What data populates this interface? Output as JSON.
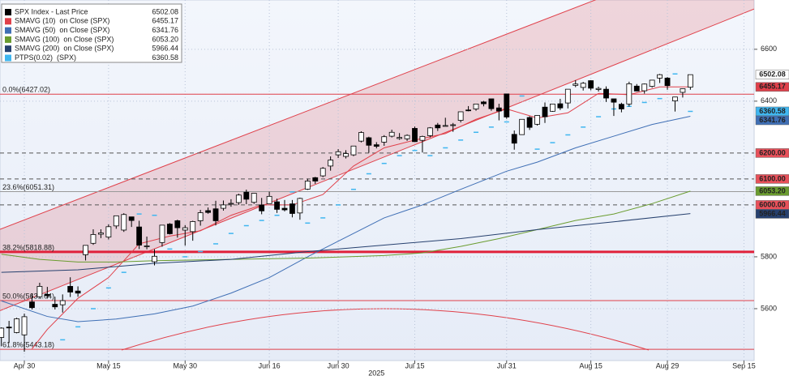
{
  "chart_data": {
    "type": "candlestick",
    "ohlc": {
      "name": "SPX Index - Last Price",
      "color": "#000000",
      "open": [
        5489,
        5529,
        5508,
        5499,
        5626,
        5646,
        5655,
        5617,
        5615,
        5686,
        5668,
        5808,
        5852,
        5887,
        5876,
        5919,
        5903,
        5954,
        5915,
        5841,
        5781,
        5855,
        5926,
        5939,
        5903,
        5897,
        5939,
        5978,
        5985,
        5987,
        6004,
        6009,
        6049,
        6010,
        6000,
        6005,
        6012,
        5987,
        6004,
        5969,
        6061,
        6105,
        6112,
        6150,
        6193,
        6187,
        6193,
        6246,
        6259,
        6232,
        6242,
        6265,
        6256,
        6255,
        6295,
        6249,
        6267,
        6308,
        6304,
        6307,
        6326,
        6366,
        6370,
        6397,
        6409,
        6374,
        6428,
        6272,
        6271,
        6337,
        6311,
        6377,
        6361,
        6390,
        6393,
        6461,
        6453,
        6479,
        6445,
        6446,
        6409,
        6388,
        6389,
        6458,
        6440,
        6457,
        6489,
        6489,
        6401,
        6434,
        6454
      ],
      "high": [
        5528,
        5553,
        5565,
        5581,
        5659,
        5700,
        5684,
        5646,
        5655,
        5721,
        5686,
        5845,
        5906,
        5906,
        5925,
        5959,
        5968,
        5954,
        5939,
        5878,
        5829,
        5922,
        5930,
        5943,
        5922,
        5939,
        5981,
        5990,
        6016,
        6017,
        6022,
        6043,
        6059,
        6046,
        6027,
        6051,
        6024,
        6019,
        6019,
        6028,
        6101,
        6108,
        6146,
        6187,
        6215,
        6211,
        6227,
        6284,
        6263,
        6242,
        6269,
        6290,
        6277,
        6272,
        6302,
        6267,
        6300,
        6316,
        6336,
        6316,
        6360,
        6381,
        6390,
        6401,
        6409,
        6390,
        6428,
        6287,
        6330,
        6342,
        6346,
        6395,
        6389,
        6409,
        6446,
        6481,
        6474,
        6481,
        6456,
        6457,
        6409,
        6394,
        6475,
        6466,
        6468,
        6482,
        6505,
        6493,
        6416,
        6449,
        6502.08
      ],
      "low": [
        5455,
        5468,
        5505,
        5434,
        5597,
        5643,
        5639,
        5597,
        5585,
        5645,
        5646,
        5786,
        5846,
        5872,
        5867,
        5908,
        5896,
        5915,
        5830,
        5829,
        5767,
        5839,
        5886,
        5874,
        5843,
        5862,
        5920,
        5966,
        5921,
        5978,
        5993,
        6000,
        6003,
        6004,
        5964,
        6005,
        5969,
        5975,
        5952,
        5943,
        6058,
        6081,
        6107,
        6132,
        6181,
        6179,
        6188,
        6241,
        6201,
        6218,
        6228,
        6260,
        6251,
        6247,
        6243,
        6202,
        6260,
        6285,
        6303,
        6282,
        6318,
        6361,
        6363,
        6380,
        6363,
        6326,
        6332,
        6213,
        6271,
        6289,
        6306,
        6316,
        6359,
        6366,
        6372,
        6454,
        6441,
        6442,
        6437,
        6397,
        6343,
        6357,
        6379,
        6438,
        6429,
        6452,
        6470,
        6444,
        6360,
        6414,
        6444
      ],
      "close": [
        5525,
        5528,
        5561,
        5569,
        5604,
        5686,
        5650,
        5607,
        5631,
        5664,
        5660,
        5844,
        5886,
        5892,
        5916,
        5958,
        5963,
        5940,
        5845,
        5842,
        5802,
        5922,
        5889,
        5912,
        5912,
        5936,
        5970,
        5971,
        5939,
        6000,
        6006,
        6038,
        6022,
        6045,
        5977,
        6033,
        5983,
        5981,
        5967,
        6025,
        6092,
        6092,
        6141,
        6173,
        6205,
        6198,
        6227,
        6279,
        6230,
        6226,
        6263,
        6280,
        6260,
        6268,
        6244,
        6264,
        6297,
        6297,
        6306,
        6309,
        6359,
        6363,
        6389,
        6390,
        6371,
        6362,
        6339,
        6238,
        6330,
        6299,
        6345,
        6340,
        6389,
        6374,
        6446,
        6466,
        6469,
        6450,
        6449,
        6412,
        6396,
        6370,
        6467,
        6439,
        6466,
        6481,
        6502,
        6460,
        6416,
        6448,
        6502.08
      ]
    },
    "series": [
      {
        "name": "SMAVG (10)  on Close (SPX)",
        "color": "#e0404a",
        "style": "line",
        "x": [
          4,
          6,
          8,
          10,
          14,
          18,
          22,
          26,
          30,
          34,
          38,
          42,
          46,
          50,
          54,
          58,
          62,
          66,
          70,
          74,
          78,
          82,
          86,
          90
        ],
        "values": [
          5445,
          5520,
          5580,
          5640,
          5720,
          5850,
          5880,
          5900,
          5960,
          6000,
          6000,
          6040,
          6150,
          6220,
          6250,
          6275,
          6330,
          6370,
          6335,
          6355,
          6430,
          6425,
          6455,
          6455.17
        ]
      },
      {
        "name": "SMAVG (50)  on Close (SPX)",
        "color": "#3f6fb5",
        "style": "line",
        "x": [
          0,
          6,
          10,
          15,
          20,
          25,
          30,
          35,
          40,
          44,
          50,
          55,
          60,
          66,
          70,
          75,
          80,
          85,
          90
        ],
        "values": [
          5630,
          5570,
          5550,
          5560,
          5580,
          5610,
          5660,
          5720,
          5800,
          5860,
          5950,
          6000,
          6060,
          6130,
          6165,
          6220,
          6265,
          6310,
          6341.76
        ]
      },
      {
        "name": "SMAVG (100)  on Close (SPX)",
        "color": "#6a9c2f",
        "style": "line",
        "x": [
          0,
          5,
          10,
          15,
          20,
          30,
          40,
          50,
          55,
          60,
          65,
          70,
          75,
          80,
          85,
          90
        ],
        "values": [
          5810,
          5790,
          5780,
          5780,
          5785,
          5790,
          5795,
          5805,
          5815,
          5840,
          5870,
          5905,
          5940,
          5965,
          6005,
          6053.2
        ],
        "value_labels": [
          null,
          null,
          null,
          null,
          null,
          null,
          null,
          null,
          null,
          null,
          null,
          null,
          null,
          null,
          null,
          "6053.20"
        ]
      },
      {
        "name": "SMAVG (200)  on Close (SPX)",
        "color": "#26406e",
        "style": "line",
        "x": [
          0,
          10,
          20,
          30,
          40,
          50,
          60,
          70,
          80,
          90
        ],
        "values": [
          5740,
          5750,
          5775,
          5790,
          5820,
          5845,
          5870,
          5905,
          5935,
          5966.44
        ]
      },
      {
        "name": "PTPS(0.02)  (SPX)",
        "color": "#3fb6f0",
        "style": "dash",
        "x": [
          8,
          10,
          12,
          14,
          16,
          18,
          20,
          22,
          24,
          26,
          28,
          30,
          32,
          34,
          36,
          38,
          40,
          42,
          44,
          46,
          48,
          50,
          52,
          54,
          56,
          58,
          60,
          62,
          64,
          66,
          68,
          70,
          72,
          74,
          76,
          78,
          80,
          82,
          84,
          86,
          88,
          90
        ],
        "values": [
          5480,
          5530,
          5600,
          5680,
          5740,
          5965,
          5960,
          5830,
          5800,
          5820,
          5850,
          5890,
          5920,
          5940,
          5960,
          6050,
          5930,
          5950,
          6000,
          6060,
          6120,
          6160,
          6190,
          6210,
          6190,
          6220,
          6250,
          6280,
          6300,
          6320,
          6420,
          6215,
          6240,
          6270,
          6300,
          6340,
          6370,
          6380,
          6395,
          6410,
          6505,
          6360.58
        ]
      }
    ],
    "levels": [
      {
        "value": 6200,
        "label": "6200.00"
      },
      {
        "value": 6100,
        "label": "6100.00"
      },
      {
        "value": 6000,
        "label": "6000.00"
      }
    ],
    "fib_levels": [
      {
        "value": 6427.02,
        "label": "0.0%(6427.02)",
        "color": "#e0404a"
      },
      {
        "value": 6051.31,
        "label": "23.6%(6051.31)",
        "color": "#999999"
      },
      {
        "value": 5818.88,
        "label": "38.2%(5818.88)",
        "color": "#e0203a"
      },
      {
        "value": 5631.04,
        "label": "50.0%(5631.04)",
        "color": "#e0404a"
      },
      {
        "value": 5443.18,
        "label": "61.8%(5443.18)",
        "color": "#e0404a"
      }
    ],
    "trend_channel": {
      "color": "#e0404a",
      "upper": {
        "x": [
          0,
          75.9
        ],
        "values": [
          5908,
          6771
        ]
      },
      "lower": {
        "x": [
          3,
          98.3
        ],
        "values": [
          5630,
          6755
        ]
      }
    },
    "xlim": [
      -0.18,
      98.33
    ],
    "xticks": [
      {
        "value": 3,
        "label": "Apr 30"
      },
      {
        "value": 14,
        "label": "May 15"
      },
      {
        "value": 24,
        "label": "May 30"
      },
      {
        "value": 35,
        "label": "Jun 16"
      },
      {
        "value": 44,
        "label": "Jun 30"
      },
      {
        "value": 54,
        "label": "Jul 15"
      },
      {
        "value": 66,
        "label": "Jul 31"
      },
      {
        "value": 77,
        "label": "Aug 15"
      },
      {
        "value": 87,
        "label": "Aug 29"
      },
      {
        "value": 97,
        "label": "Sep 15"
      }
    ],
    "x_axis_label": "2025",
    "ylim": [
      5400,
      6790
    ],
    "yticks": [
      5600,
      5800,
      6400,
      6600
    ],
    "grid": true
  }
}
